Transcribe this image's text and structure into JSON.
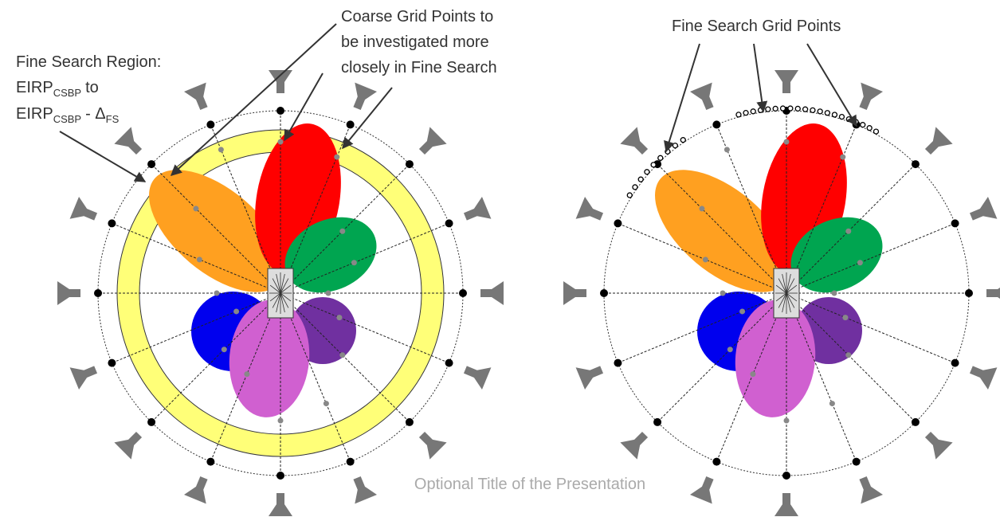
{
  "fine_search_region": {
    "line1": "Fine Search Region:",
    "line2": [
      "EIRP",
      "CSBP",
      "to"
    ],
    "line3": [
      "EIRP",
      "CSBP",
      "- Δ",
      "FS"
    ]
  },
  "coarse_grid_points": [
    "Coarse Grid Points to",
    "be investigated more",
    "closely in Fine Search"
  ],
  "fine_search_grid_points": "Fine Search Grid Points",
  "footer": "Optional Title of the Presentation"
}
